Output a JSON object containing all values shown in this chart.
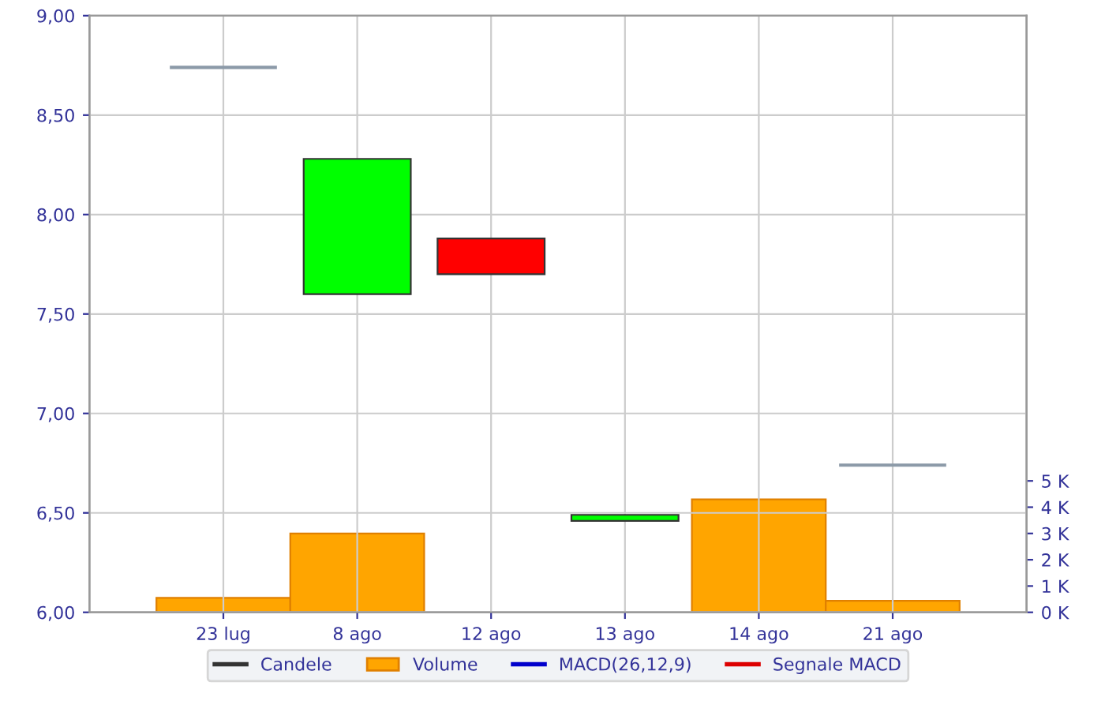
{
  "chart_data": {
    "type": "candlestick",
    "categories": [
      "23 lug",
      "8 ago",
      "12 ago",
      "13 ago",
      "14 ago",
      "21 ago"
    ],
    "series": [
      {
        "name": "Candele",
        "color": "#333333",
        "colors": [
          "#8c9aa8",
          "#00ff00",
          "#ff0000",
          "#00ff00",
          null,
          "#8c9aa8"
        ],
        "ohlc": [
          [
            8.74,
            8.74,
            8.74,
            8.74
          ],
          [
            7.6,
            8.28,
            7.6,
            8.28
          ],
          [
            7.88,
            7.88,
            7.7,
            7.7
          ],
          [
            6.46,
            6.49,
            6.46,
            6.49
          ],
          null,
          [
            6.74,
            6.74,
            6.74,
            6.74
          ]
        ]
      },
      {
        "name": "Volume",
        "type": "bar",
        "axis": "y2",
        "color": "#ffa500",
        "values": [
          550,
          3000,
          null,
          null,
          4300,
          440
        ]
      },
      {
        "name": "MACD(26,12,9)",
        "type": "line",
        "color": "#0000cc",
        "values": [
          null,
          null,
          null,
          null,
          null,
          null
        ]
      },
      {
        "name": "Segnale MACD",
        "type": "line",
        "color": "#dd0000",
        "values": [
          null,
          null,
          null,
          null,
          null,
          null
        ]
      }
    ],
    "ylim": [
      6,
      9
    ],
    "yticks": [
      {
        "value": 6,
        "label": "6,00"
      },
      {
        "value": 6.5,
        "label": "6,50"
      },
      {
        "value": 7,
        "label": "7,00"
      },
      {
        "value": 7.5,
        "label": "7,50"
      },
      {
        "value": 8,
        "label": "8,00"
      },
      {
        "value": 8.5,
        "label": "8,50"
      },
      {
        "value": 9,
        "label": "9,00"
      }
    ],
    "y2lim": [
      0,
      22700
    ],
    "y2ticks": [
      {
        "value": 0,
        "label": "0 K"
      },
      {
        "value": 1000,
        "label": "1 K"
      },
      {
        "value": 2000,
        "label": "2 K"
      },
      {
        "value": 3000,
        "label": "3 K"
      },
      {
        "value": 4000,
        "label": "4 K"
      },
      {
        "value": 5000,
        "label": "5 K"
      }
    ],
    "grid": true,
    "legend": "bottom"
  }
}
